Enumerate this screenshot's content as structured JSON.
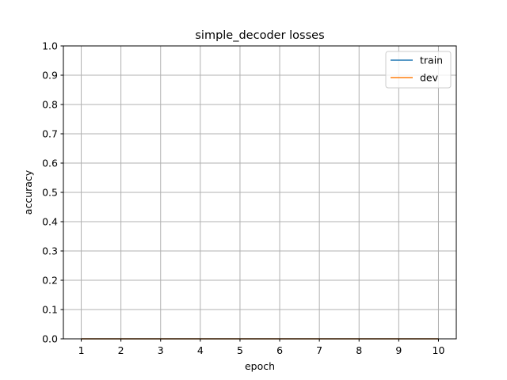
{
  "chart_data": {
    "type": "line",
    "title": "simple_decoder losses",
    "xlabel": "epoch",
    "ylabel": "accuracy",
    "xlim": [
      0.55,
      10.45
    ],
    "ylim": [
      0.0,
      1.0
    ],
    "x_ticks": [
      "1",
      "2",
      "3",
      "4",
      "5",
      "6",
      "7",
      "8",
      "9",
      "10"
    ],
    "y_ticks": [
      "0.0",
      "0.1",
      "0.2",
      "0.3",
      "0.4",
      "0.5",
      "0.6",
      "0.7",
      "0.8",
      "0.9",
      "1.0"
    ],
    "grid": true,
    "legend_position": "top-right",
    "x": [
      1,
      2,
      3,
      4,
      5,
      6,
      7,
      8,
      9,
      10
    ],
    "series": [
      {
        "name": "train",
        "color": "#1f77b4",
        "values": [
          0,
          0,
          0,
          0,
          0,
          0,
          0,
          0,
          0,
          0
        ]
      },
      {
        "name": "dev",
        "color": "#ff7f0e",
        "values": [
          0,
          0,
          0,
          0,
          0,
          0,
          0,
          0,
          0,
          0
        ]
      }
    ]
  }
}
